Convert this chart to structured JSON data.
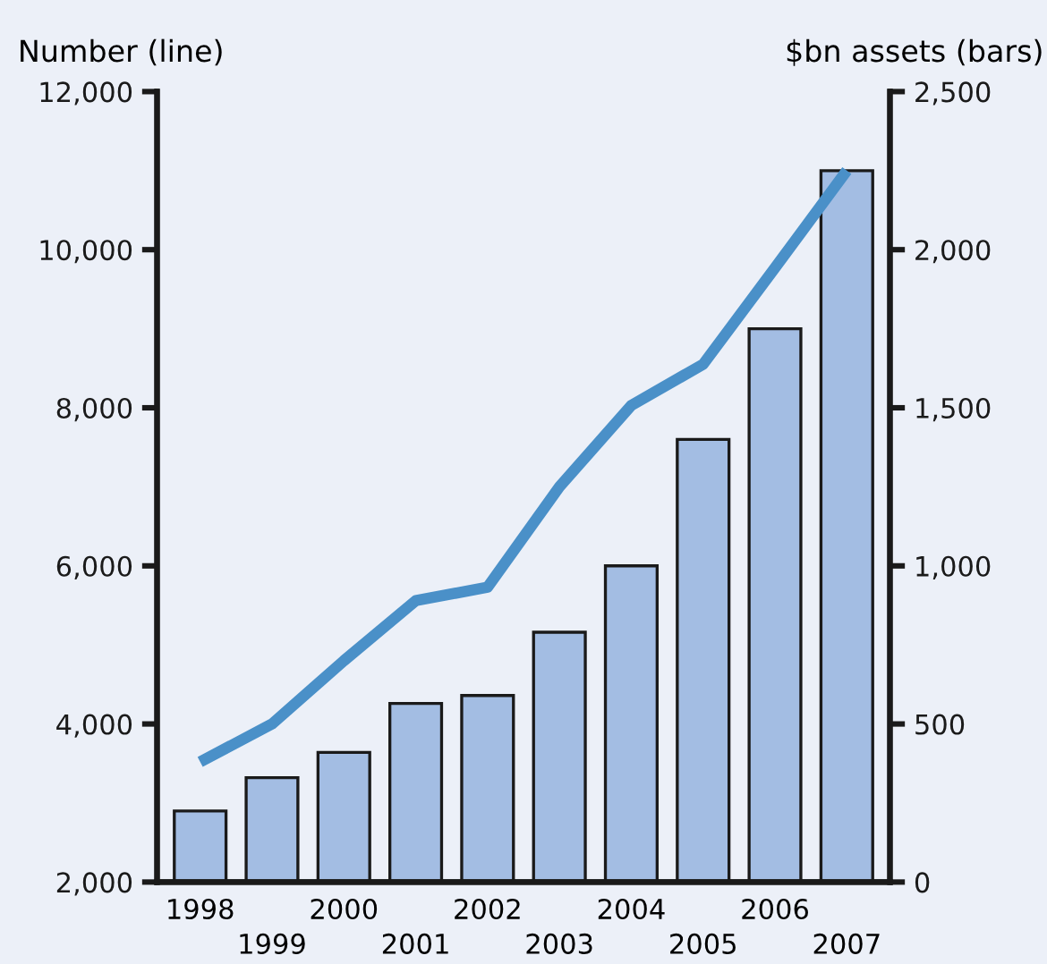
{
  "chart_data": {
    "type": "bar",
    "ylabel": "Number (line)",
    "y2label": "$bn assets (bars)",
    "categories": [
      "1998",
      "1999",
      "2000",
      "2001",
      "2002",
      "2003",
      "2004",
      "2005",
      "2006",
      "2007"
    ],
    "series": [
      {
        "axis": "y2",
        "color": "#a3bde3",
        "values": [
          225,
          330,
          410,
          565,
          590,
          790,
          1000,
          1400,
          1750,
          2250
        ]
      },
      {
        "type": "line",
        "axis": "y",
        "color": "#4a90c8",
        "values": [
          3520,
          4000,
          4800,
          5560,
          5730,
          7000,
          8030,
          8550,
          9770,
          11000
        ]
      }
    ],
    "ylim": [
      2000,
      12000
    ],
    "yticks": [
      {
        "value": 2000,
        "label": "2,000"
      },
      {
        "value": 4000,
        "label": "4,000"
      },
      {
        "value": 6000,
        "label": "6,000"
      },
      {
        "value": 8000,
        "label": "8,000"
      },
      {
        "value": 10000,
        "label": "10,000"
      },
      {
        "value": 12000,
        "label": "12,000"
      }
    ],
    "y2lim": [
      0,
      2500
    ],
    "y2ticks": [
      0,
      500,
      {
        "value": 1000,
        "label": "1,000"
      },
      {
        "value": 1500,
        "label": "1,500"
      },
      {
        "value": 2000,
        "label": "2,000"
      },
      {
        "value": 2500,
        "label": "2,500"
      }
    ],
    "grid": false,
    "legend": false,
    "marker": "none",
    "line_style": "solid"
  }
}
